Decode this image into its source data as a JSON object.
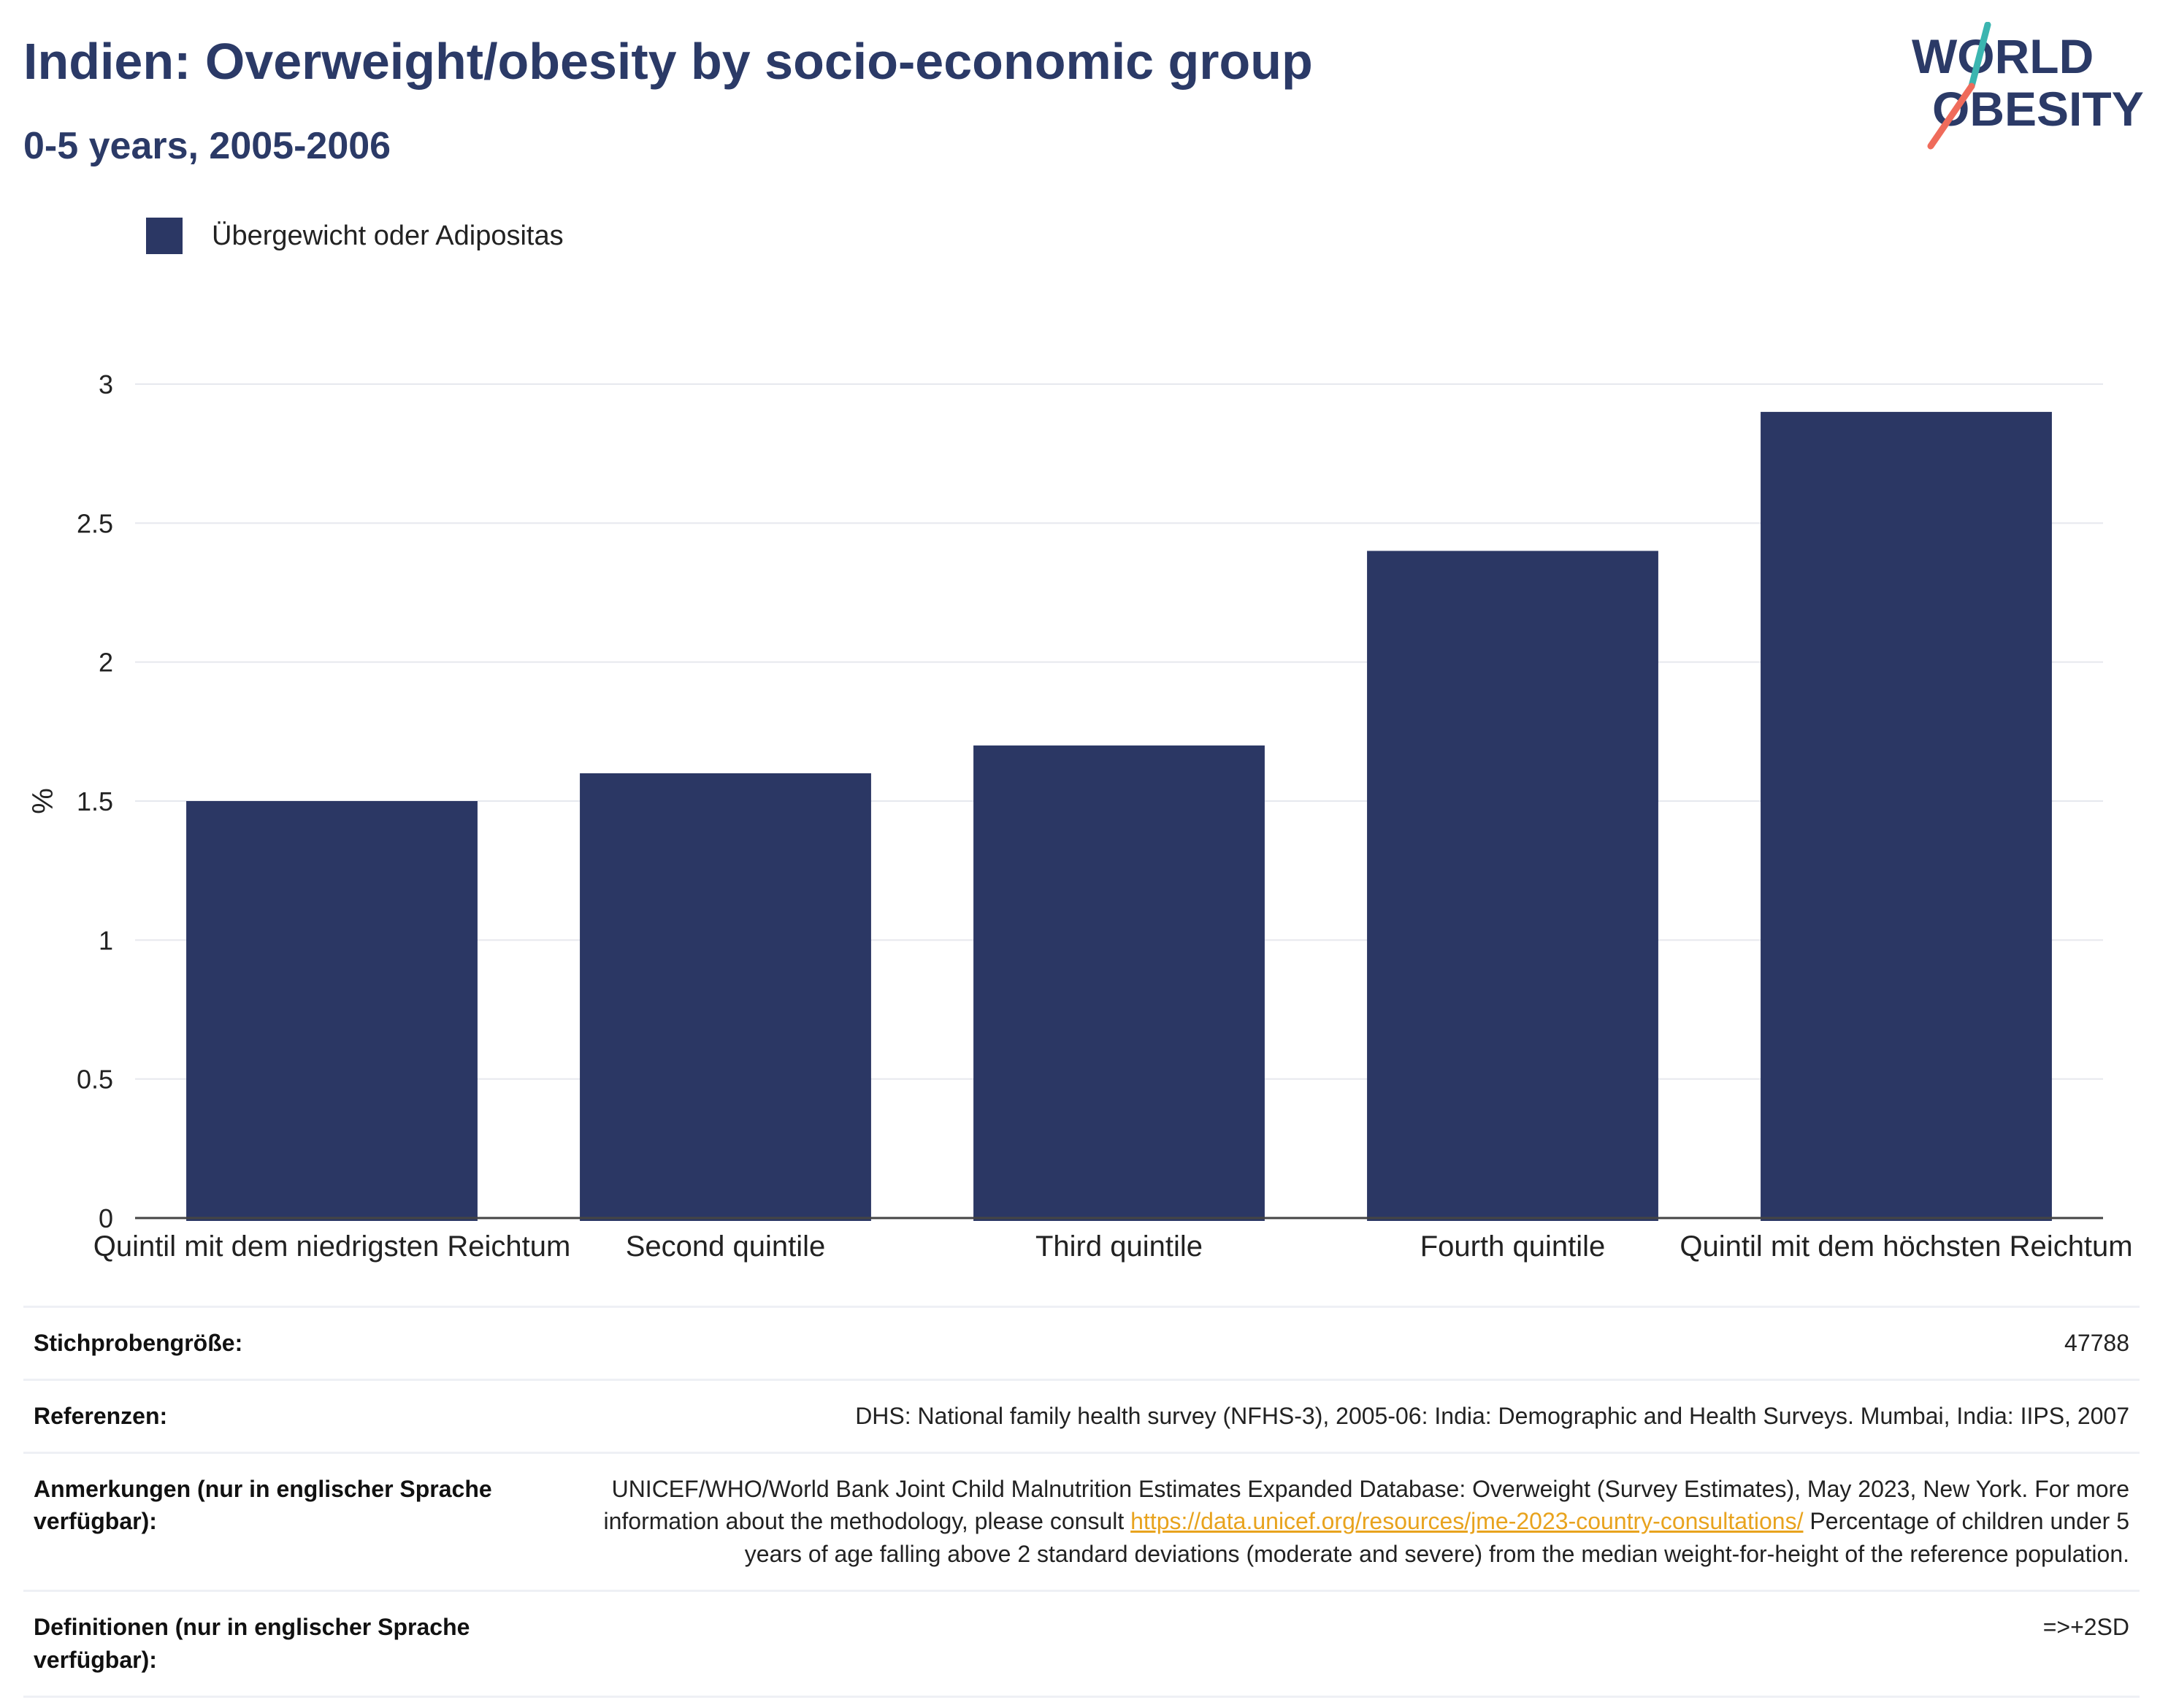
{
  "header": {
    "title": "Indien: Overweight/obesity by socio-economic group",
    "subtitle": "0-5 years, 2005-2006"
  },
  "logo": {
    "line1": "WORLD",
    "line2": "OBESITY",
    "colors": {
      "text": "#2b3a67",
      "slash_top": "#3bb5b0",
      "slash_bottom": "#ef6b5b"
    }
  },
  "legend": {
    "label": "Übergewicht oder Adipositas",
    "color": "#2b3764"
  },
  "chart_data": {
    "type": "bar",
    "categories": [
      "Quintil mit dem niedrigsten Reichtum",
      "Second quintile",
      "Third quintile",
      "Fourth quintile",
      "Quintil mit dem höchsten Reichtum"
    ],
    "series": [
      {
        "name": "Übergewicht oder Adipositas",
        "values": [
          1.5,
          1.6,
          1.7,
          2.4,
          2.9
        ],
        "color": "#2b3764"
      }
    ],
    "ylabel": "%",
    "xlabel": "",
    "ylim": [
      0,
      3
    ],
    "yticks": [
      0,
      0.5,
      1,
      1.5,
      2,
      2.5,
      3
    ],
    "ytick_labels": [
      "0",
      "0.5",
      "1",
      "1.5",
      "2",
      "2.5",
      "3"
    ],
    "grid": true,
    "legend_position": "top-left"
  },
  "info": [
    {
      "key": "Stichprobengröße:",
      "value": "47788"
    },
    {
      "key": "Referenzen:",
      "value": "DHS: National family health survey (NFHS-3), 2005-06: India: Demographic and Health Surveys. Mumbai, India: IIPS, 2007"
    },
    {
      "key": "Anmerkungen (nur in englischer Sprache verfügbar):",
      "value_pre": "UNICEF/WHO/World Bank Joint Child Malnutrition Estimates Expanded Database: Overweight (Survey Estimates), May 2023, New York. For more information about the methodology, please consult ",
      "value_link": "https://data.unicef.org/resources/jme-2023-country-consultations/",
      "value_post": " Percentage of children under 5 years of age falling above 2 standard deviations (moderate and severe) from the median weight-for-height of the reference population."
    },
    {
      "key": "Definitionen (nur in englischer Sprache verfügbar):",
      "value": "=>+2SD"
    }
  ]
}
